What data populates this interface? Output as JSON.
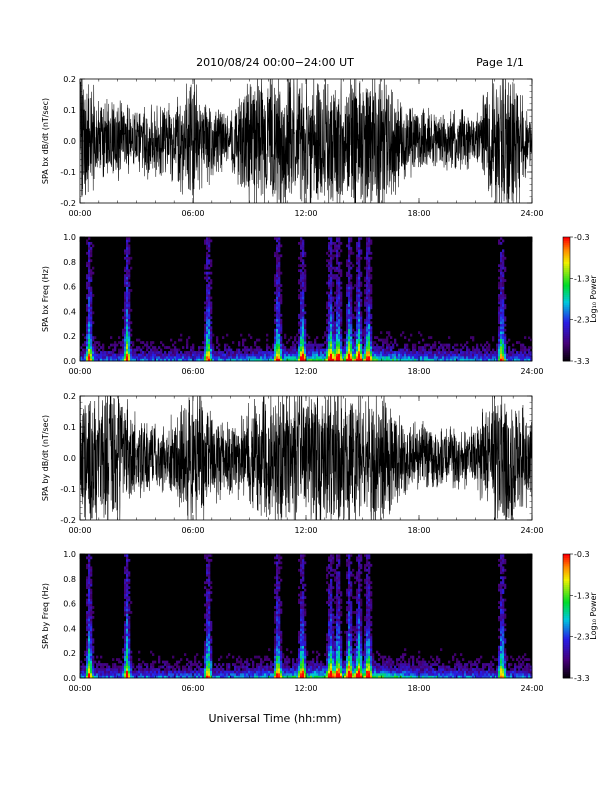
{
  "header": {
    "title": "2010/08/24  00:00−24:00 UT",
    "page": "Page 1/1"
  },
  "xlabel": "Universal Time (hh:mm)",
  "chart_data": [
    {
      "type": "line",
      "ylabel": "SPA bx dB/dt (nT/sec)",
      "xlim": [
        "00:00",
        "24:00"
      ],
      "ylim": [
        -0.2,
        0.2
      ],
      "x_ticks": [
        "00:00",
        "06:00",
        "12:00",
        "18:00",
        "24:00"
      ],
      "y_ticks": [
        -0.2,
        -0.1,
        0.0,
        0.1,
        0.2
      ],
      "envelope_hours": [
        0,
        1,
        2,
        3,
        4,
        5,
        6,
        7,
        8,
        9,
        10,
        11,
        12,
        13,
        14,
        15,
        16,
        17,
        18,
        19,
        20,
        21,
        22,
        23,
        24
      ],
      "envelope_amplitude": [
        0.2,
        0.12,
        0.13,
        0.09,
        0.1,
        0.12,
        0.2,
        0.1,
        0.08,
        0.2,
        0.2,
        0.2,
        0.2,
        0.2,
        0.2,
        0.2,
        0.2,
        0.12,
        0.1,
        0.08,
        0.09,
        0.07,
        0.2,
        0.2,
        0.07
      ]
    },
    {
      "type": "heatmap",
      "ylabel": "SPA bx Freq (Hz)",
      "xlim": [
        "00:00",
        "24:00"
      ],
      "ylim": [
        0.0,
        1.0
      ],
      "x_ticks": [
        "00:00",
        "06:00",
        "12:00",
        "18:00",
        "24:00"
      ],
      "y_ticks": [
        "0.0",
        "0.2",
        "0.4",
        "0.6",
        "0.8",
        "1.0"
      ],
      "colorbar": {
        "label": "Log₁₀ Power",
        "ticks": [
          "-0.3",
          "-1.3",
          "-2.3",
          "-3.3"
        ],
        "range": [
          -3.3,
          -0.3
        ]
      },
      "bursts_hours": [
        0.5,
        2.5,
        6.8,
        10.5,
        11.8,
        13.3,
        13.7,
        14.3,
        14.8,
        15.3,
        22.4
      ]
    },
    {
      "type": "line",
      "ylabel": "SPA by dB/dt (nT/sec)",
      "xlim": [
        "00:00",
        "24:00"
      ],
      "ylim": [
        -0.2,
        0.2
      ],
      "x_ticks": [
        "00:00",
        "06:00",
        "12:00",
        "18:00",
        "24:00"
      ],
      "y_ticks": [
        -0.2,
        -0.1,
        0.0,
        0.1,
        0.2
      ],
      "envelope_hours": [
        0,
        1,
        2,
        3,
        4,
        5,
        6,
        7,
        8,
        9,
        10,
        11,
        12,
        13,
        14,
        15,
        16,
        17,
        18,
        19,
        20,
        21,
        22,
        23,
        24
      ],
      "envelope_amplitude": [
        0.2,
        0.2,
        0.2,
        0.12,
        0.09,
        0.12,
        0.2,
        0.14,
        0.1,
        0.15,
        0.2,
        0.2,
        0.2,
        0.2,
        0.2,
        0.2,
        0.2,
        0.12,
        0.1,
        0.09,
        0.09,
        0.08,
        0.2,
        0.2,
        0.1
      ]
    },
    {
      "type": "heatmap",
      "ylabel": "SPA by Freq (Hz)",
      "xlim": [
        "00:00",
        "24:00"
      ],
      "ylim": [
        0.0,
        1.0
      ],
      "x_ticks": [
        "00:00",
        "06:00",
        "12:00",
        "18:00",
        "24:00"
      ],
      "y_ticks": [
        "0.0",
        "0.2",
        "0.4",
        "0.6",
        "0.8",
        "1.0"
      ],
      "colorbar": {
        "label": "Log₁₀ Power",
        "ticks": [
          "-0.3",
          "-1.3",
          "-2.3",
          "-3.3"
        ],
        "range": [
          -3.3,
          -0.3
        ]
      },
      "bursts_hours": [
        0.5,
        2.5,
        6.8,
        10.5,
        11.8,
        13.3,
        13.7,
        14.3,
        14.8,
        15.3,
        22.4
      ]
    }
  ]
}
